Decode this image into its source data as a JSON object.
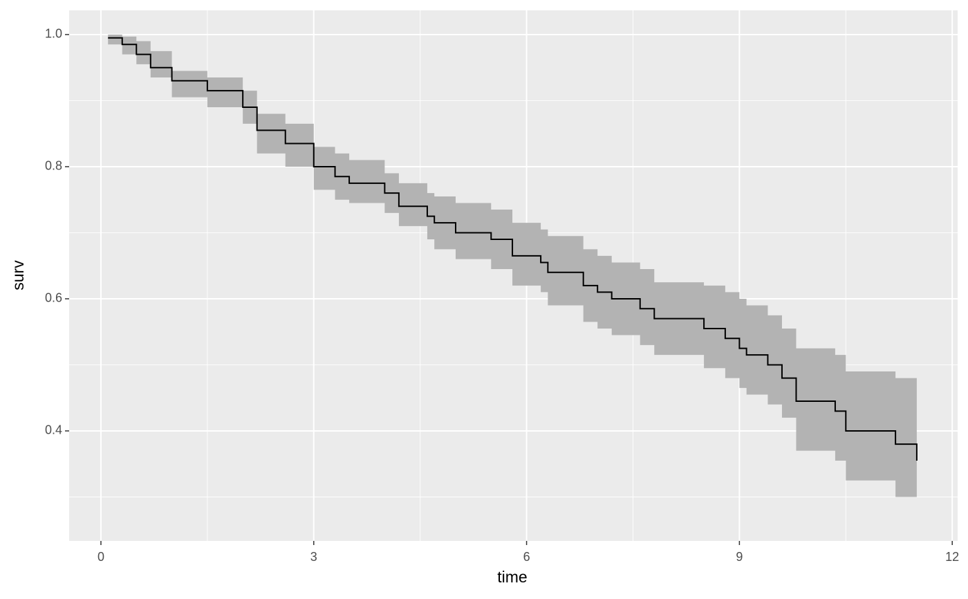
{
  "chart_data": {
    "type": "step",
    "xlabel": "time",
    "ylabel": "surv",
    "x": [
      0.1,
      0.3,
      0.5,
      0.7,
      1.0,
      1.5,
      2.0,
      2.2,
      2.6,
      3.0,
      3.3,
      3.5,
      4.0,
      4.2,
      4.6,
      4.7,
      5.0,
      5.5,
      5.8,
      6.2,
      6.3,
      6.8,
      7.0,
      7.2,
      7.6,
      7.8,
      8.5,
      8.8,
      9.0,
      9.1,
      9.4,
      9.6,
      9.8,
      10.35,
      10.5,
      11.2,
      11.5
    ],
    "values": [
      0.995,
      0.985,
      0.97,
      0.95,
      0.93,
      0.915,
      0.89,
      0.855,
      0.835,
      0.8,
      0.785,
      0.775,
      0.76,
      0.74,
      0.725,
      0.715,
      0.7,
      0.69,
      0.665,
      0.655,
      0.64,
      0.62,
      0.61,
      0.6,
      0.585,
      0.57,
      0.555,
      0.54,
      0.525,
      0.515,
      0.5,
      0.48,
      0.445,
      0.43,
      0.4,
      0.38,
      0.355
    ],
    "upper": [
      1.0,
      0.997,
      0.99,
      0.975,
      0.945,
      0.935,
      0.915,
      0.88,
      0.865,
      0.83,
      0.82,
      0.81,
      0.79,
      0.775,
      0.76,
      0.755,
      0.745,
      0.735,
      0.715,
      0.705,
      0.695,
      0.675,
      0.665,
      0.655,
      0.645,
      0.625,
      0.62,
      0.61,
      0.6,
      0.59,
      0.575,
      0.555,
      0.525,
      0.515,
      0.49,
      0.48,
      0.46
    ],
    "lower": [
      0.985,
      0.97,
      0.955,
      0.935,
      0.905,
      0.89,
      0.865,
      0.82,
      0.8,
      0.765,
      0.75,
      0.745,
      0.73,
      0.71,
      0.69,
      0.675,
      0.66,
      0.645,
      0.62,
      0.61,
      0.59,
      0.565,
      0.555,
      0.545,
      0.53,
      0.515,
      0.495,
      0.48,
      0.465,
      0.455,
      0.44,
      0.42,
      0.37,
      0.355,
      0.325,
      0.3,
      0.27
    ],
    "color": "#000000",
    "band_color": "#b3b3b3",
    "background": "#ebebeb",
    "xlim": [
      -0.448,
      12.076
    ],
    "ylim": [
      0.2335,
      1.0366
    ],
    "xticks": [
      0,
      3,
      6,
      9,
      12
    ],
    "yticks": [
      0.4,
      0.6,
      0.8,
      {
        "value": 1,
        "label": "1.0"
      }
    ],
    "grid": true
  }
}
